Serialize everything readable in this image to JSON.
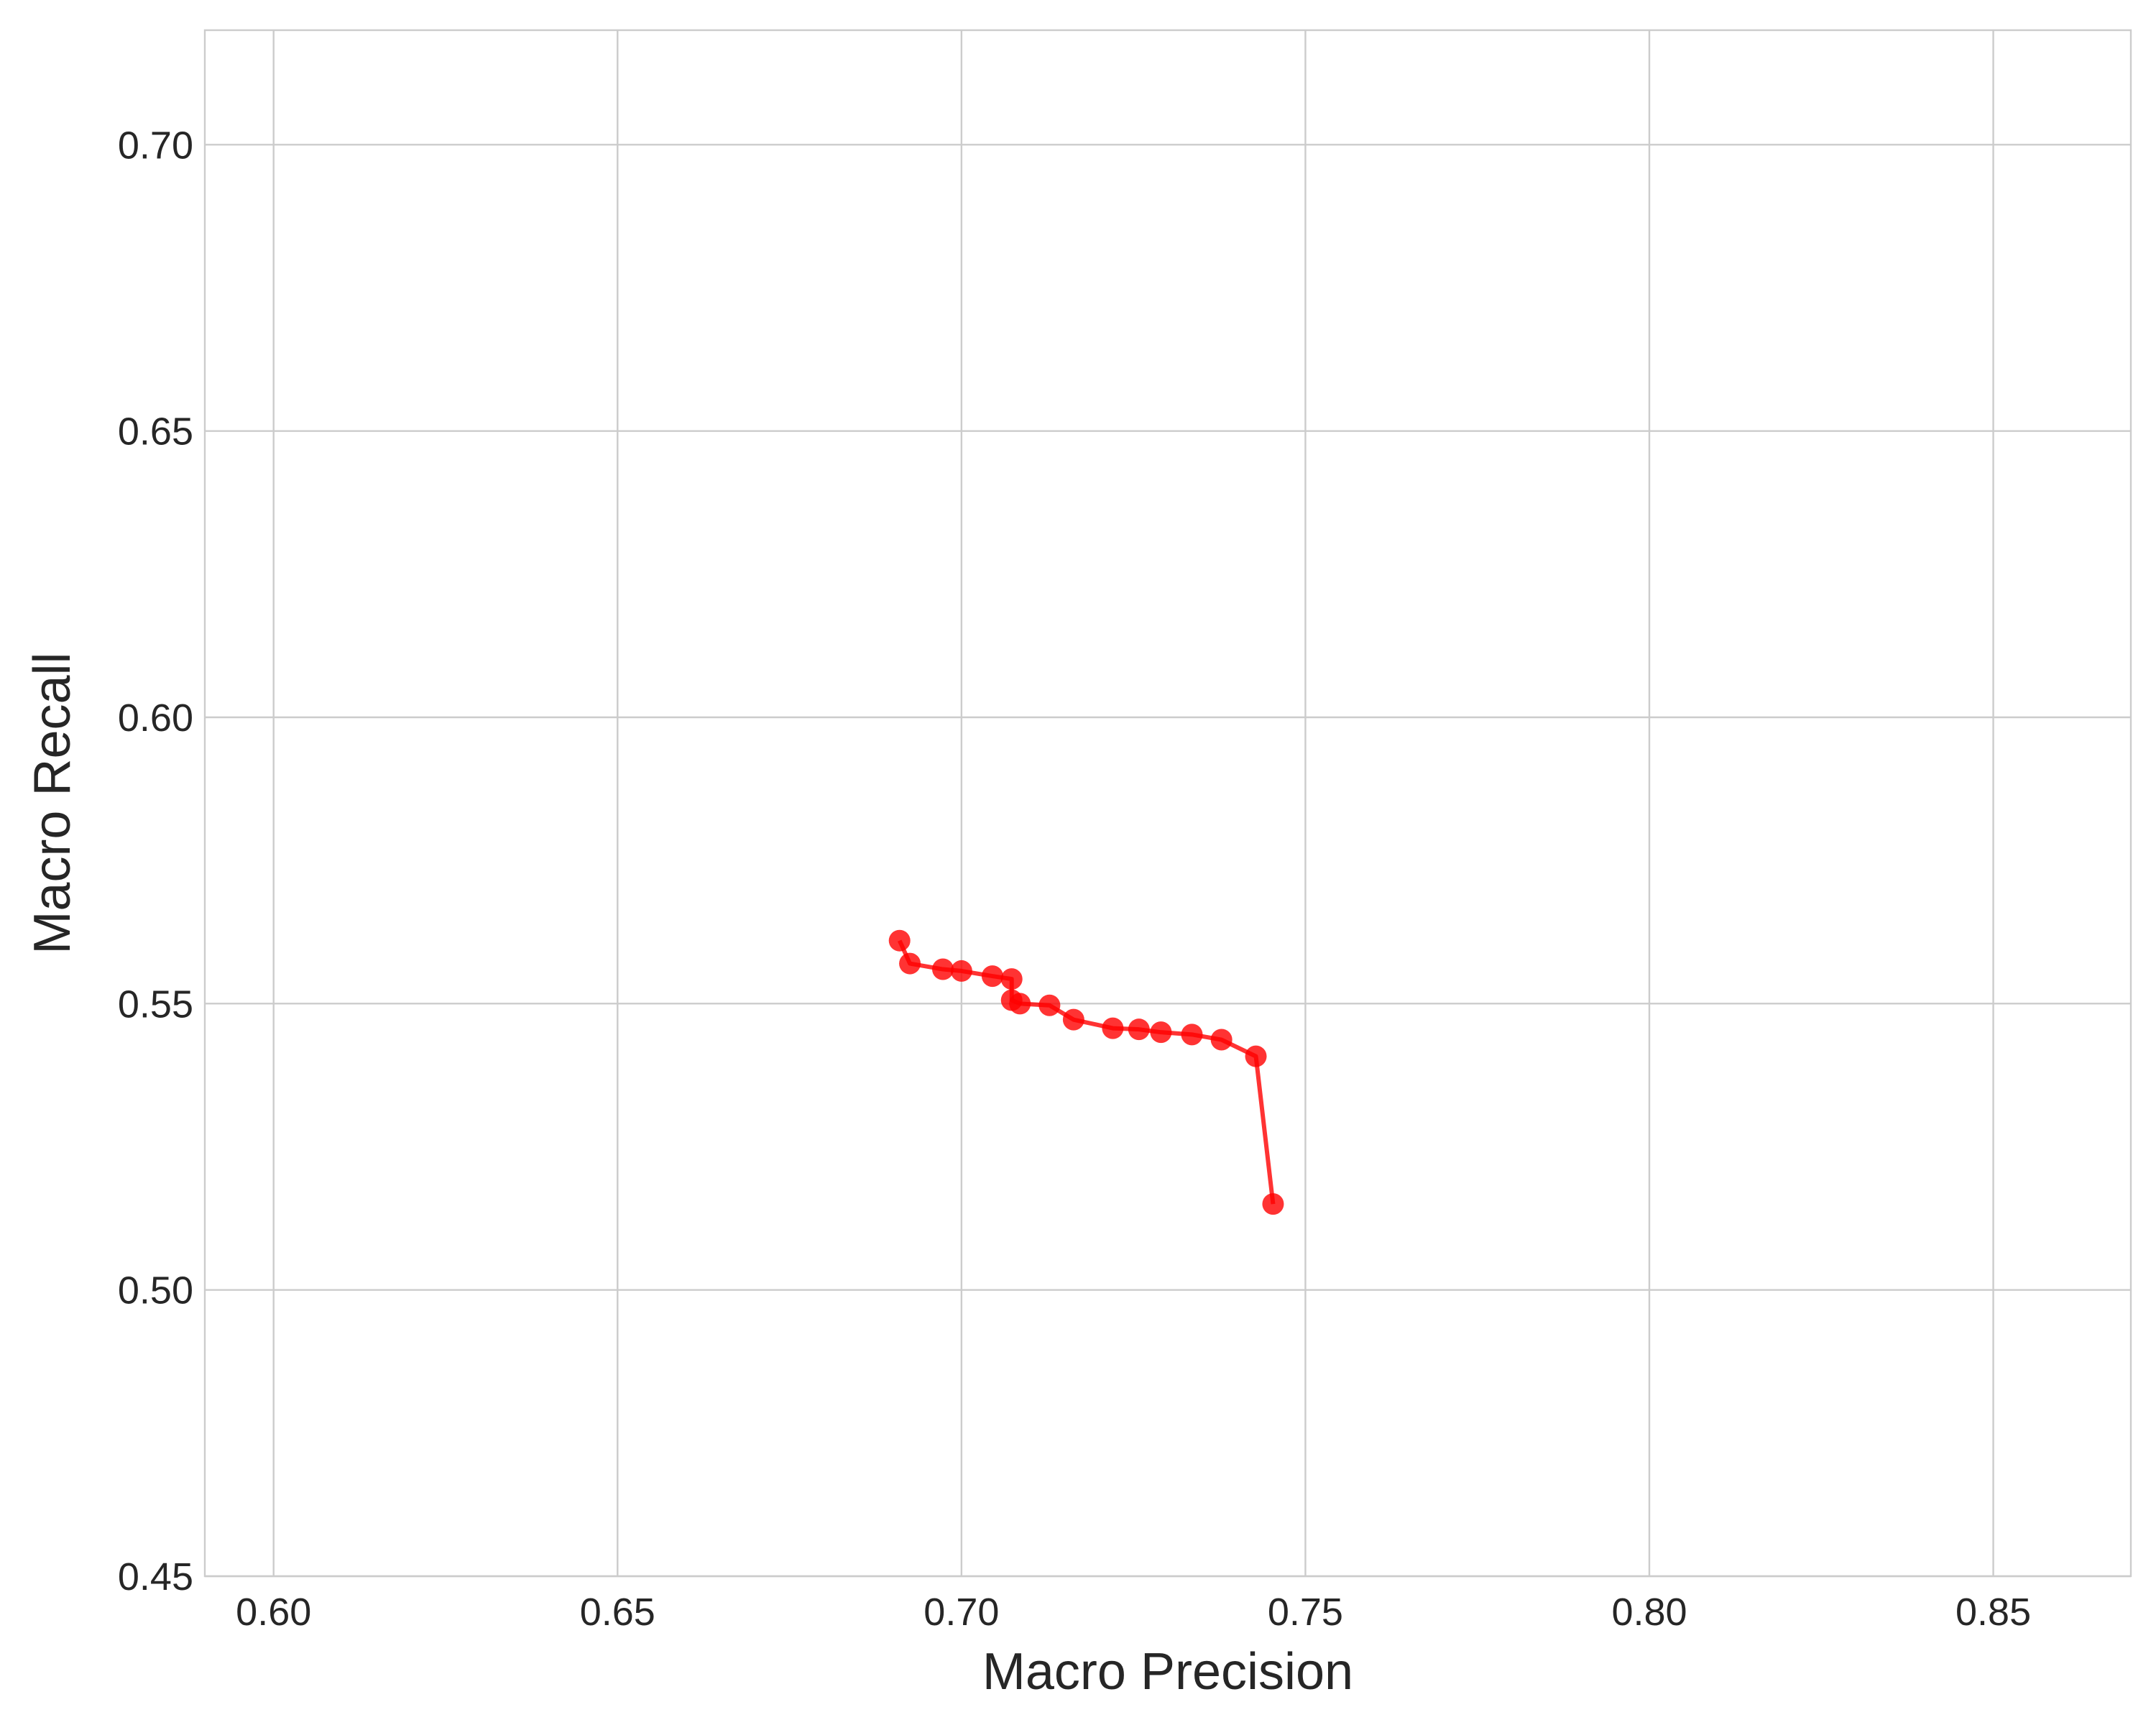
{
  "chart_data": {
    "type": "line",
    "title": "",
    "xlabel": "Macro Precision",
    "ylabel": "Macro Recall",
    "xlim": [
      0.59,
      0.87
    ],
    "ylim": [
      0.45,
      0.72
    ],
    "x_ticks": [
      "0.60",
      "0.65",
      "0.70",
      "0.75",
      "0.80",
      "0.85"
    ],
    "y_ticks": [
      "0.45",
      "0.50",
      "0.55",
      "0.60",
      "0.65",
      "0.70"
    ],
    "grid": true,
    "legend": "none",
    "series": [
      {
        "color": "#ff0000",
        "marker": "circle",
        "points": [
          {
            "x": 0.691,
            "y": 0.561
          },
          {
            "x": 0.6925,
            "y": 0.557
          },
          {
            "x": 0.6973,
            "y": 0.556
          },
          {
            "x": 0.7,
            "y": 0.5557
          },
          {
            "x": 0.7045,
            "y": 0.5548
          },
          {
            "x": 0.7073,
            "y": 0.5543
          },
          {
            "x": 0.7073,
            "y": 0.5506
          },
          {
            "x": 0.7085,
            "y": 0.55
          },
          {
            "x": 0.7128,
            "y": 0.5497
          },
          {
            "x": 0.7163,
            "y": 0.5472
          },
          {
            "x": 0.722,
            "y": 0.5457
          },
          {
            "x": 0.7258,
            "y": 0.5455
          },
          {
            "x": 0.729,
            "y": 0.545
          },
          {
            "x": 0.7335,
            "y": 0.5446
          },
          {
            "x": 0.7378,
            "y": 0.5437
          },
          {
            "x": 0.7428,
            "y": 0.5408
          },
          {
            "x": 0.7453,
            "y": 0.515
          }
        ]
      }
    ]
  }
}
